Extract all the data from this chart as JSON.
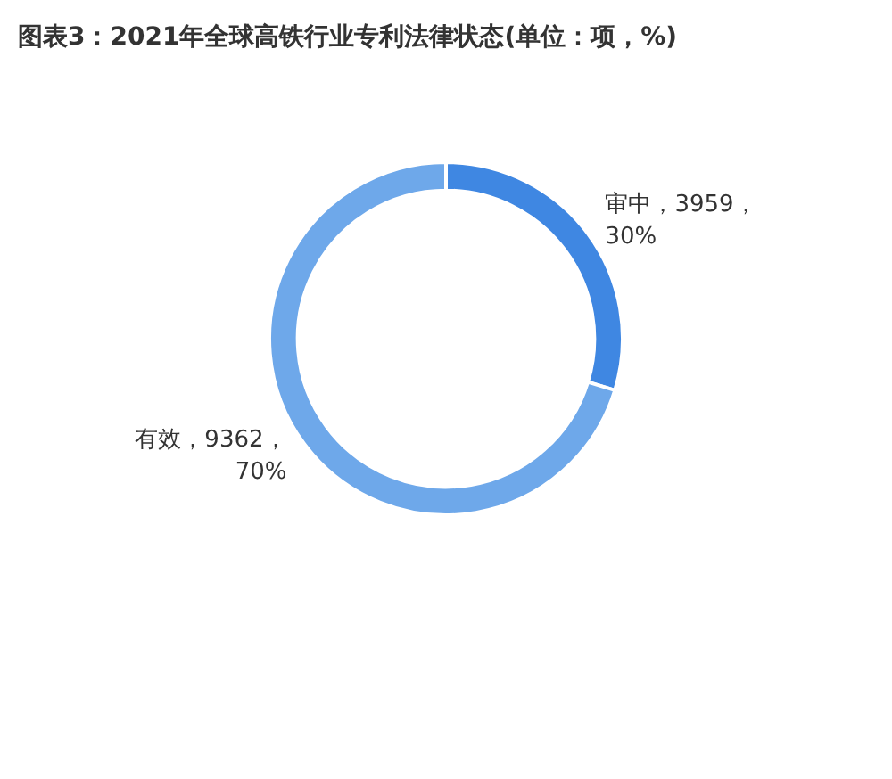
{
  "chart_data": {
    "type": "donut",
    "title": "图表3：2021年全球高铁行业专利法律状态(单位：项，%)",
    "categories": [
      "审中",
      "有效"
    ],
    "values": [
      3959,
      9362
    ],
    "colors": [
      "#3f87e2",
      "#6ea8ea"
    ],
    "value_labels": [
      "，3959，\n30%",
      "，9362，\n70%"
    ],
    "legend": false
  }
}
